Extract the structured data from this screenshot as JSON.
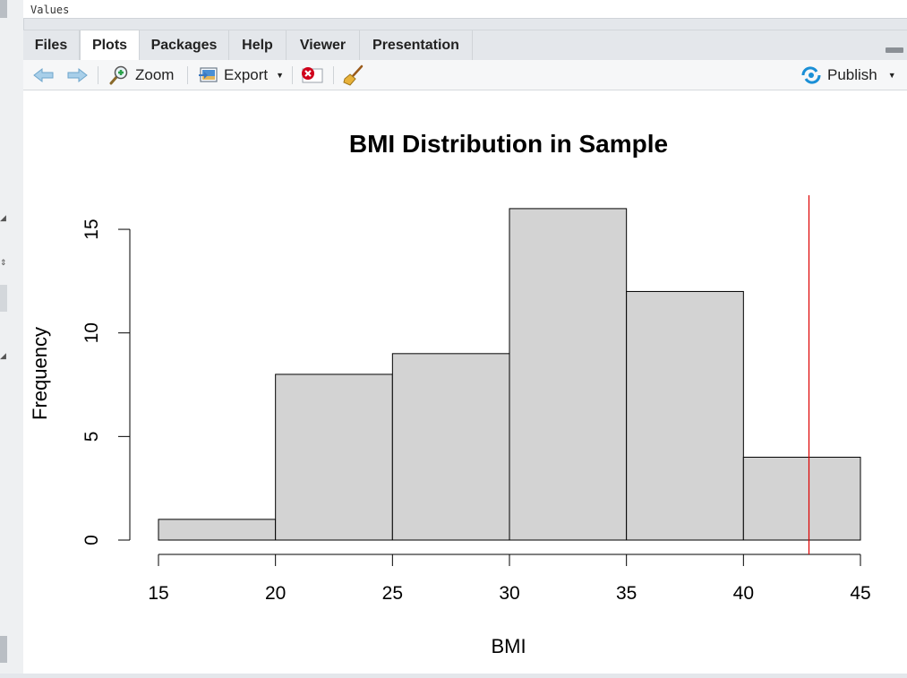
{
  "top_panel": {
    "text": "Values"
  },
  "tabs": [
    {
      "label": "Files"
    },
    {
      "label": "Plots"
    },
    {
      "label": "Packages"
    },
    {
      "label": "Help"
    },
    {
      "label": "Viewer"
    },
    {
      "label": "Presentation"
    }
  ],
  "active_tab": "Plots",
  "toolbar": {
    "zoom_label": "Zoom",
    "export_label": "Export",
    "publish_label": "Publish"
  },
  "colors": {
    "bar_fill": "#d3d3d3",
    "bar_stroke": "#000000",
    "ref_line": "#dd0000",
    "publish_icon": "#1a8fd6",
    "remove_icon": "#d0021b"
  },
  "chart_data": {
    "type": "bar",
    "title": "BMI Distribution in Sample",
    "xlabel": "BMI",
    "ylabel": "Frequency",
    "bins": [
      [
        15,
        20
      ],
      [
        20,
        25
      ],
      [
        25,
        30
      ],
      [
        30,
        35
      ],
      [
        35,
        40
      ],
      [
        40,
        45
      ]
    ],
    "values": [
      1,
      8,
      9,
      16,
      12,
      4
    ],
    "xlim": [
      15,
      45
    ],
    "ylim": [
      0,
      16
    ],
    "x_ticks": [
      "15",
      "20",
      "25",
      "30",
      "35",
      "40",
      "45"
    ],
    "y_ticks": [
      "0",
      "5",
      "10",
      "15"
    ],
    "reference_line_x": 42.8,
    "grid": false
  }
}
